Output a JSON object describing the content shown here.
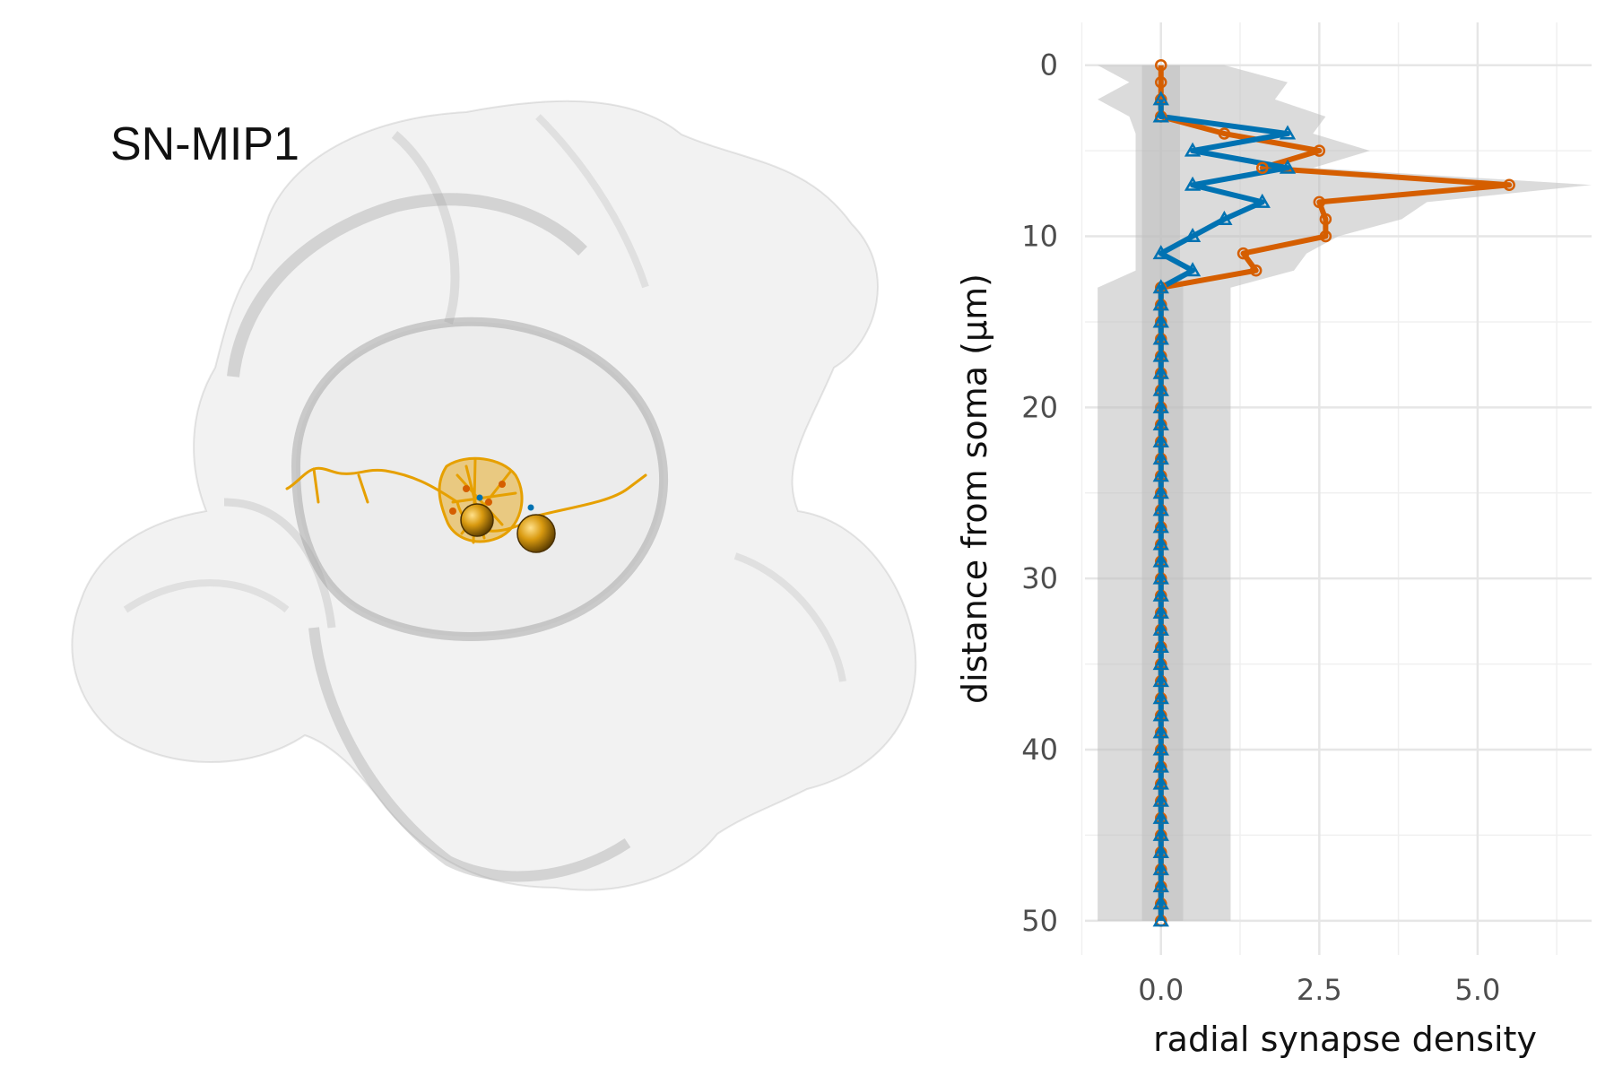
{
  "panel": {
    "label": "SN-MIP1"
  },
  "colors": {
    "orange": "#d55e00",
    "blue": "#0072b2",
    "gold": "#e69f00",
    "band": "#bdbdbd",
    "grid": "#e6e6e6"
  },
  "chart_data": {
    "type": "line",
    "xlabel": "radial synapse density",
    "ylabel": "distance from soma (µm)",
    "xlim": [
      -1.2,
      6.8
    ],
    "ylim": [
      52,
      -2.5
    ],
    "y_reversed": true,
    "x_ticks": [
      "0.0",
      "2.5",
      "5.0"
    ],
    "y_ticks": [
      "0",
      "10",
      "20",
      "30",
      "40",
      "50"
    ],
    "grid": true,
    "y": [
      0,
      1,
      2,
      3,
      4,
      5,
      6,
      7,
      8,
      9,
      10,
      11,
      12,
      13,
      14,
      15,
      16,
      17,
      18,
      19,
      20,
      21,
      22,
      23,
      24,
      25,
      26,
      27,
      28,
      29,
      30,
      31,
      32,
      33,
      34,
      35,
      36,
      37,
      38,
      39,
      40,
      41,
      42,
      43,
      44,
      45,
      46,
      47,
      48,
      49,
      50
    ],
    "series": [
      {
        "marker": "circle",
        "color": "#d55e00",
        "values": [
          0,
          0,
          0,
          0,
          1,
          2.5,
          1.6,
          5.5,
          2.5,
          2.6,
          2.6,
          1.3,
          1.5,
          0,
          0,
          0,
          0,
          0,
          0,
          0,
          0,
          0,
          0,
          0,
          0,
          0,
          0,
          0,
          0,
          0,
          0,
          0,
          0,
          0,
          0,
          0,
          0,
          0,
          0,
          0,
          0,
          0,
          0,
          0,
          0,
          0,
          0,
          0,
          0,
          0,
          0
        ]
      },
      {
        "marker": "triangle",
        "color": "#0072b2",
        "values": [
          null,
          null,
          0,
          0,
          2,
          0.5,
          2,
          0.5,
          1.6,
          1,
          0.5,
          0,
          0.5,
          0,
          0,
          0,
          0,
          0,
          0,
          0,
          0,
          0,
          0,
          0,
          0,
          0,
          0,
          0,
          0,
          0,
          0,
          0,
          0,
          0,
          0,
          0,
          0,
          0,
          0,
          0,
          0,
          0,
          0,
          0,
          0,
          0,
          0,
          0,
          0,
          0,
          0
        ]
      }
    ],
    "band_outer": {
      "lo": [
        -1,
        -0.5,
        -1,
        -0.5,
        -0.4,
        -0.4,
        -0.4,
        -0.4,
        -0.4,
        -0.4,
        -0.4,
        -0.4,
        -0.4,
        -1,
        -1,
        -1,
        -1,
        -1,
        -1,
        -1,
        -1,
        -1,
        -1,
        -1,
        -1,
        -1,
        -1,
        -1,
        -1,
        -1,
        -1,
        -1,
        -1,
        -1,
        -1,
        -1,
        -1,
        -1,
        -1,
        -1,
        -1,
        -1,
        -1,
        -1,
        -1,
        -1,
        -1,
        -1,
        -1,
        -1,
        -1
      ],
      "hi": [
        1,
        2,
        1.8,
        2.6,
        2.4,
        3.3,
        2.4,
        6.8,
        4.2,
        3.8,
        2.8,
        2.3,
        2.1,
        1.1,
        1.1,
        1.1,
        1.1,
        1.1,
        1.1,
        1.1,
        1.1,
        1.1,
        1.1,
        1.1,
        1.1,
        1.1,
        1.1,
        1.1,
        1.1,
        1.1,
        1.1,
        1.1,
        1.1,
        1.1,
        1.1,
        1.1,
        1.1,
        1.1,
        1.1,
        1.1,
        1.1,
        1.1,
        1.1,
        1.1,
        1.1,
        1.1,
        1.1,
        1.1,
        1.1,
        1.1,
        1.1
      ]
    },
    "band_inner": {
      "lo": [
        -0.3,
        -0.3,
        -0.3,
        -0.3,
        -0.3,
        -0.3,
        -0.3,
        -0.3,
        -0.3,
        -0.3,
        -0.3,
        -0.3,
        -0.3,
        -0.3,
        -0.3,
        -0.3,
        -0.3,
        -0.3,
        -0.3,
        -0.3,
        -0.3,
        -0.3,
        -0.3,
        -0.3,
        -0.3,
        -0.3,
        -0.3,
        -0.3,
        -0.3,
        -0.3,
        -0.3,
        -0.3,
        -0.3,
        -0.3,
        -0.3,
        -0.3,
        -0.3,
        -0.3,
        -0.3,
        -0.3,
        -0.3,
        -0.3,
        -0.3,
        -0.3,
        -0.3,
        -0.3,
        -0.3,
        -0.3,
        -0.3,
        -0.3,
        -0.3
      ],
      "hi": [
        0.3,
        0.3,
        0.3,
        0.3,
        0.3,
        0.3,
        0.3,
        0.3,
        0.3,
        0.3,
        0.3,
        0.3,
        0.3,
        0.35,
        0.35,
        0.35,
        0.35,
        0.35,
        0.35,
        0.35,
        0.35,
        0.35,
        0.35,
        0.35,
        0.35,
        0.35,
        0.35,
        0.35,
        0.35,
        0.35,
        0.35,
        0.35,
        0.35,
        0.35,
        0.35,
        0.35,
        0.35,
        0.35,
        0.35,
        0.35,
        0.35,
        0.35,
        0.35,
        0.35,
        0.35,
        0.35,
        0.35,
        0.35,
        0.35,
        0.35,
        0.35
      ]
    }
  }
}
